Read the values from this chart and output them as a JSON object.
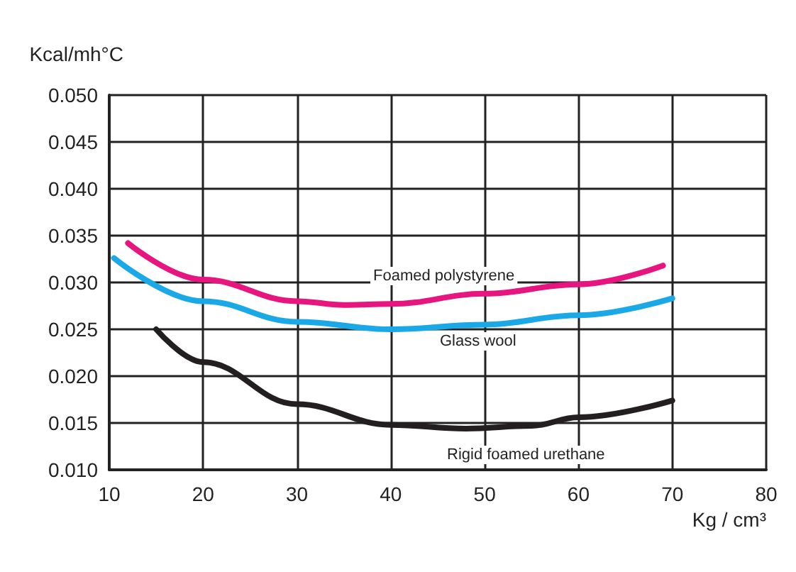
{
  "chart_data": {
    "type": "line",
    "xlabel": "Kg / cm³",
    "ylabel": "Kcal/mh°C",
    "xlim": [
      10,
      80
    ],
    "xticks": [
      10,
      20,
      30,
      40,
      50,
      60,
      70,
      80
    ],
    "ylim": [
      0.01,
      0.05
    ],
    "yticks": [
      {
        "value": 0.01,
        "label": "0.010"
      },
      {
        "value": 0.015,
        "label": "0.015"
      },
      {
        "value": 0.02,
        "label": "0.020"
      },
      {
        "value": 0.025,
        "label": "0.025"
      },
      {
        "value": 0.03,
        "label": "0.030"
      },
      {
        "value": 0.035,
        "label": "0.035"
      },
      {
        "value": 0.04,
        "label": "0.040"
      },
      {
        "value": 0.045,
        "label": "0.045"
      },
      {
        "value": 0.05,
        "label": "0.050"
      }
    ],
    "grid": true,
    "marker": "none",
    "line_style": "solid",
    "series": [
      {
        "name": "Foamed polystyrene",
        "color": "#e6157f",
        "x": [
          12,
          20,
          30,
          35,
          40,
          50,
          60,
          69
        ],
        "values": [
          0.0342,
          0.0303,
          0.028,
          0.0276,
          0.0277,
          0.0288,
          0.0298,
          0.0318
        ]
      },
      {
        "name": "Glass wool",
        "color": "#1aa9e6",
        "x": [
          10.5,
          20,
          30,
          40,
          50,
          60,
          70
        ],
        "values": [
          0.0326,
          0.028,
          0.0258,
          0.025,
          0.0255,
          0.0265,
          0.0283
        ]
      },
      {
        "name": "Rigid foamed urethane",
        "color": "#231f20",
        "x": [
          15,
          20,
          30,
          40,
          48,
          55,
          60,
          70
        ],
        "values": [
          0.025,
          0.0215,
          0.017,
          0.0148,
          0.0144,
          0.0147,
          0.0156,
          0.0174
        ]
      }
    ]
  }
}
